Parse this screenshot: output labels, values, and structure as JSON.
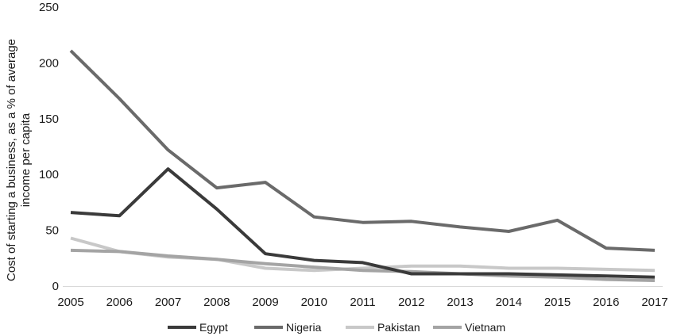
{
  "chart_data": {
    "type": "line",
    "title": "",
    "xlabel": "",
    "ylabel": [
      "Cost of starting a business, as a % of average",
      "income per capita"
    ],
    "x": [
      2005,
      2006,
      2007,
      2008,
      2009,
      2010,
      2011,
      2012,
      2013,
      2014,
      2015,
      2016,
      2017
    ],
    "ylim": [
      0,
      250
    ],
    "yticks": [
      0,
      50,
      100,
      150,
      200,
      250
    ],
    "grid": false,
    "legend_position": "bottom",
    "series": [
      {
        "name": "Egypt",
        "color": "#3a3a3a",
        "values": [
          66,
          63,
          105,
          69,
          29,
          23,
          21,
          11,
          11,
          11,
          10,
          9,
          8
        ]
      },
      {
        "name": "Nigeria",
        "color": "#6a6a6a",
        "values": [
          211,
          168,
          122,
          88,
          93,
          62,
          57,
          58,
          53,
          49,
          59,
          34,
          32
        ]
      },
      {
        "name": "Pakistan",
        "color": "#c8c8c8",
        "values": [
          43,
          31,
          26,
          24,
          16,
          14,
          16,
          18,
          18,
          16,
          16,
          15,
          14
        ]
      },
      {
        "name": "Vietnam",
        "color": "#a4a4a4",
        "values": [
          32,
          31,
          27,
          24,
          20,
          17,
          14,
          13,
          11,
          9,
          8,
          6,
          5
        ]
      }
    ]
  }
}
